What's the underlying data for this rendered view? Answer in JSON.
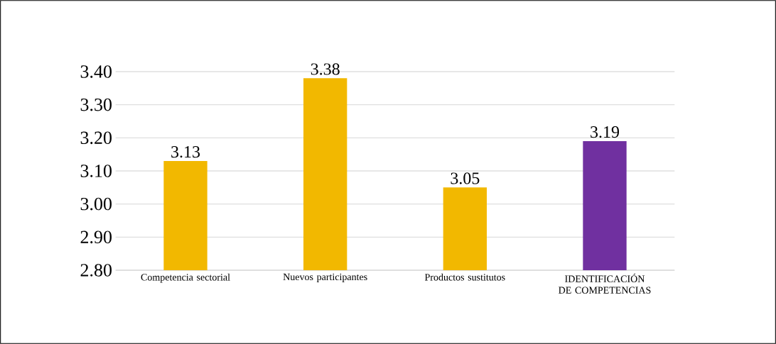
{
  "chart_data": {
    "type": "bar",
    "categories": [
      "Competencia sectorial",
      "Nuevos participantes",
      "Productos sustitutos",
      "IDENTIFICACIÓN DE COMPETENCIAS"
    ],
    "values": [
      3.13,
      3.38,
      3.05,
      3.19
    ],
    "colors": [
      "#f2b800",
      "#f2b800",
      "#f2b800",
      "#7030a0"
    ],
    "ylim": [
      2.8,
      3.4
    ],
    "yticks": [
      {
        "value": 2.8,
        "label": "2.80"
      },
      {
        "value": 2.9,
        "label": "2.90"
      },
      {
        "value": 3.0,
        "label": "3.00"
      },
      {
        "value": 3.1,
        "label": "3.10"
      },
      {
        "value": 3.2,
        "label": "3.20"
      },
      {
        "value": 3.3,
        "label": "3.30"
      },
      {
        "value": 3.4,
        "label": "3.40"
      }
    ],
    "grid": "y",
    "data_labels": true
  }
}
